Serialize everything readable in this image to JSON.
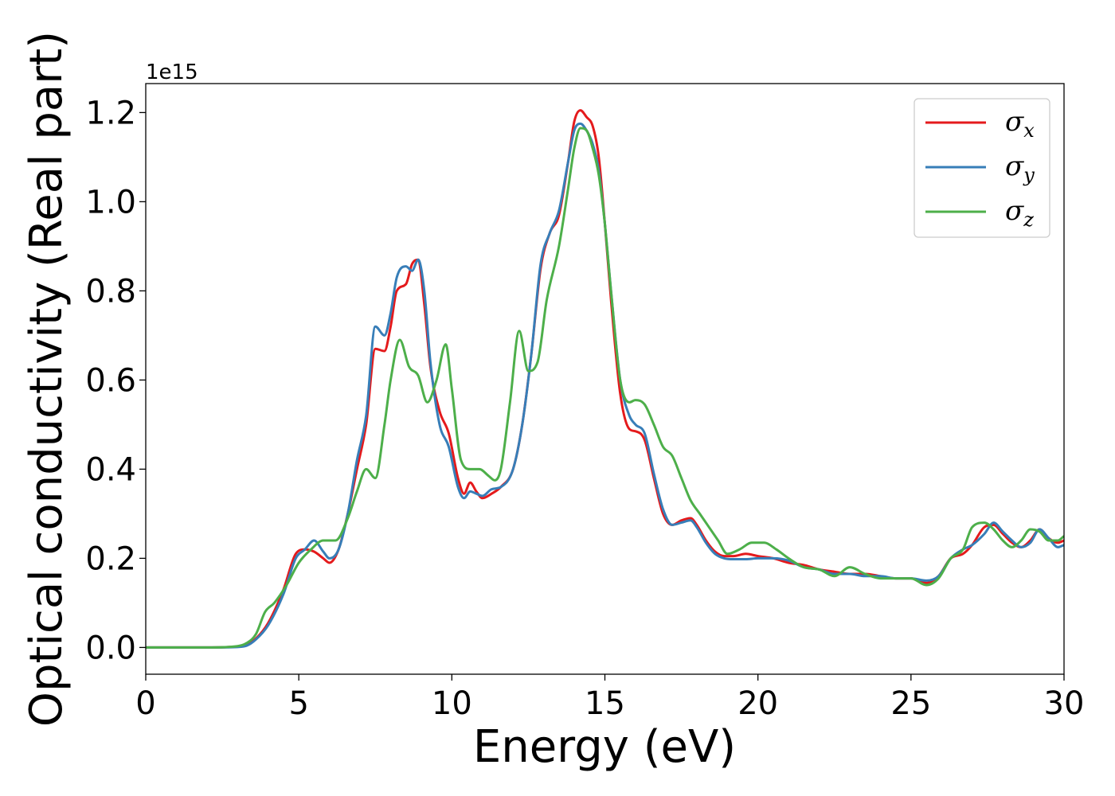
{
  "chart_data": {
    "type": "line",
    "xlabel": "Energy (eV)",
    "ylabel": "Optical conductivity (Real part)",
    "y_offset_text": "1e15",
    "xlim": [
      0,
      30
    ],
    "ylim": [
      -0.06,
      1.265
    ],
    "x_ticks": [
      0,
      5,
      10,
      15,
      20,
      25,
      30
    ],
    "x_tick_labels": [
      "0",
      "5",
      "10",
      "15",
      "20",
      "25",
      "30"
    ],
    "y_ticks": [
      0.0,
      0.2,
      0.4,
      0.6,
      0.8,
      1.0,
      1.2
    ],
    "y_tick_labels": [
      "0.0",
      "0.2",
      "0.4",
      "0.6",
      "0.8",
      "1.0",
      "1.2"
    ],
    "grid": false,
    "legend_position": "top-right",
    "series": [
      {
        "name": "σx",
        "legend_symbol": "σ",
        "legend_subscript": "x",
        "color": "#e41a1c",
        "x": [
          0,
          2,
          3,
          3.3,
          3.6,
          4.0,
          4.5,
          4.9,
          5.2,
          5.5,
          5.8,
          6.0,
          6.3,
          6.6,
          6.9,
          7.2,
          7.5,
          7.8,
          8.0,
          8.2,
          8.5,
          8.7,
          8.9,
          9.1,
          9.3,
          9.6,
          9.9,
          10.2,
          10.4,
          10.6,
          10.8,
          11.0,
          11.3,
          11.6,
          12.0,
          12.3,
          12.6,
          12.9,
          13.2,
          13.5,
          13.8,
          14.0,
          14.2,
          14.4,
          14.6,
          14.8,
          15.0,
          15.2,
          15.5,
          15.8,
          16.0,
          16.3,
          16.6,
          16.9,
          17.2,
          17.5,
          17.8,
          18.0,
          18.3,
          18.6,
          18.9,
          19.2,
          19.6,
          20.0,
          20.5,
          21.0,
          21.5,
          22.0,
          22.5,
          23.0,
          23.5,
          24.0,
          24.5,
          25.0,
          25.5,
          25.9,
          26.3,
          26.7,
          27.0,
          27.4,
          27.7,
          28.0,
          28.3,
          28.6,
          28.9,
          29.2,
          29.5,
          29.8,
          30.0
        ],
        "y": [
          0,
          0,
          0.002,
          0.006,
          0.02,
          0.055,
          0.13,
          0.21,
          0.22,
          0.215,
          0.2,
          0.19,
          0.22,
          0.3,
          0.4,
          0.5,
          0.67,
          0.665,
          0.72,
          0.8,
          0.815,
          0.86,
          0.87,
          0.77,
          0.63,
          0.53,
          0.48,
          0.38,
          0.345,
          0.37,
          0.35,
          0.335,
          0.345,
          0.36,
          0.4,
          0.5,
          0.66,
          0.85,
          0.93,
          0.97,
          1.09,
          1.18,
          1.205,
          1.19,
          1.17,
          1.1,
          0.95,
          0.78,
          0.57,
          0.49,
          0.485,
          0.465,
          0.38,
          0.3,
          0.275,
          0.285,
          0.29,
          0.275,
          0.24,
          0.215,
          0.205,
          0.205,
          0.21,
          0.205,
          0.2,
          0.19,
          0.185,
          0.175,
          0.17,
          0.165,
          0.165,
          0.16,
          0.155,
          0.155,
          0.145,
          0.16,
          0.2,
          0.21,
          0.23,
          0.27,
          0.275,
          0.255,
          0.235,
          0.225,
          0.24,
          0.265,
          0.245,
          0.235,
          0.24
        ]
      },
      {
        "name": "σy",
        "legend_symbol": "σ",
        "legend_subscript": "y",
        "color": "#377eb8",
        "x": [
          0,
          2,
          3,
          3.3,
          3.6,
          4.0,
          4.5,
          4.9,
          5.2,
          5.5,
          5.8,
          6.0,
          6.3,
          6.6,
          6.9,
          7.2,
          7.5,
          7.8,
          8.0,
          8.2,
          8.5,
          8.7,
          8.9,
          9.1,
          9.3,
          9.6,
          9.9,
          10.2,
          10.4,
          10.6,
          10.8,
          11.0,
          11.3,
          11.6,
          12.0,
          12.3,
          12.6,
          12.9,
          13.2,
          13.5,
          13.8,
          14.0,
          14.2,
          14.4,
          14.6,
          14.8,
          15.0,
          15.2,
          15.5,
          15.8,
          16.0,
          16.3,
          16.6,
          16.9,
          17.2,
          17.5,
          17.8,
          18.0,
          18.3,
          18.6,
          18.9,
          19.2,
          19.6,
          20.0,
          20.5,
          21.0,
          21.5,
          22.0,
          22.5,
          23.0,
          23.5,
          24.0,
          24.5,
          25.0,
          25.5,
          25.9,
          26.3,
          26.7,
          27.0,
          27.4,
          27.7,
          28.0,
          28.3,
          28.6,
          28.9,
          29.2,
          29.5,
          29.8,
          30.0
        ],
        "y": [
          0,
          0,
          0.001,
          0.004,
          0.018,
          0.05,
          0.12,
          0.2,
          0.22,
          0.24,
          0.215,
          0.2,
          0.22,
          0.3,
          0.42,
          0.52,
          0.72,
          0.7,
          0.75,
          0.83,
          0.855,
          0.845,
          0.87,
          0.8,
          0.64,
          0.5,
          0.45,
          0.36,
          0.335,
          0.35,
          0.345,
          0.34,
          0.355,
          0.36,
          0.4,
          0.5,
          0.66,
          0.86,
          0.93,
          0.98,
          1.09,
          1.16,
          1.175,
          1.16,
          1.13,
          1.07,
          0.95,
          0.8,
          0.6,
          0.52,
          0.5,
          0.48,
          0.39,
          0.31,
          0.275,
          0.28,
          0.285,
          0.27,
          0.235,
          0.21,
          0.2,
          0.198,
          0.198,
          0.2,
          0.2,
          0.195,
          0.18,
          0.175,
          0.165,
          0.165,
          0.16,
          0.16,
          0.155,
          0.155,
          0.15,
          0.16,
          0.2,
          0.22,
          0.23,
          0.255,
          0.28,
          0.26,
          0.24,
          0.225,
          0.235,
          0.265,
          0.245,
          0.225,
          0.23
        ]
      },
      {
        "name": "σz",
        "legend_symbol": "σ",
        "legend_subscript": "z",
        "color": "#4daf4a",
        "x": [
          0,
          2,
          3,
          3.3,
          3.6,
          3.9,
          4.2,
          4.6,
          5.0,
          5.4,
          5.8,
          6.2,
          6.6,
          6.9,
          7.2,
          7.5,
          7.8,
          8.0,
          8.3,
          8.6,
          8.9,
          9.2,
          9.5,
          9.8,
          10.0,
          10.3,
          10.6,
          10.9,
          11.2,
          11.4,
          11.6,
          11.9,
          12.2,
          12.5,
          12.8,
          13.1,
          13.5,
          13.8,
          14.0,
          14.2,
          14.4,
          14.6,
          14.8,
          15.0,
          15.2,
          15.5,
          15.8,
          16.0,
          16.3,
          16.6,
          16.9,
          17.2,
          17.5,
          17.8,
          18.1,
          18.4,
          18.7,
          19.0,
          19.4,
          19.8,
          20.2,
          20.6,
          21.0,
          21.5,
          22.0,
          22.5,
          23.0,
          23.5,
          24.0,
          24.5,
          25.0,
          25.5,
          25.9,
          26.3,
          26.7,
          27.0,
          27.4,
          27.7,
          28.0,
          28.3,
          28.6,
          28.9,
          29.2,
          29.5,
          29.8,
          30.0
        ],
        "y": [
          0,
          0,
          0.003,
          0.01,
          0.03,
          0.08,
          0.1,
          0.14,
          0.19,
          0.22,
          0.24,
          0.24,
          0.29,
          0.35,
          0.4,
          0.38,
          0.5,
          0.6,
          0.69,
          0.63,
          0.61,
          0.55,
          0.6,
          0.68,
          0.58,
          0.42,
          0.4,
          0.4,
          0.385,
          0.375,
          0.4,
          0.55,
          0.71,
          0.62,
          0.64,
          0.78,
          0.9,
          1.03,
          1.12,
          1.165,
          1.16,
          1.12,
          1.06,
          0.95,
          0.8,
          0.6,
          0.55,
          0.555,
          0.545,
          0.5,
          0.45,
          0.43,
          0.38,
          0.33,
          0.3,
          0.27,
          0.24,
          0.21,
          0.22,
          0.235,
          0.235,
          0.22,
          0.2,
          0.18,
          0.175,
          0.16,
          0.18,
          0.165,
          0.155,
          0.155,
          0.155,
          0.14,
          0.155,
          0.2,
          0.22,
          0.27,
          0.28,
          0.265,
          0.24,
          0.225,
          0.24,
          0.265,
          0.26,
          0.24,
          0.24,
          0.25
        ]
      }
    ]
  }
}
